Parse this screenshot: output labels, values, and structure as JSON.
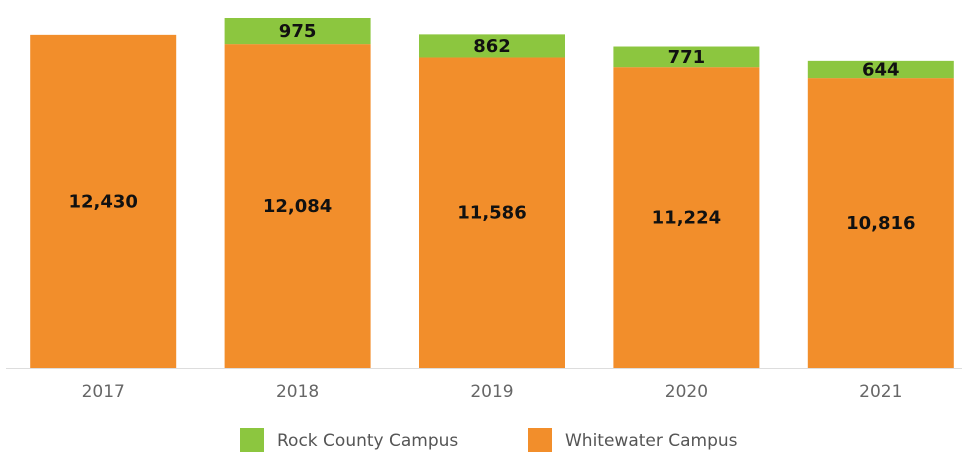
{
  "chart_data": {
    "type": "stacked_bar",
    "categories": [
      "2017",
      "2018",
      "2019",
      "2020",
      "2021"
    ],
    "series": [
      {
        "name": "Whitewater Campus",
        "color": "#f28e2b",
        "values": [
          12430,
          12084,
          11586,
          11224,
          10816
        ],
        "value_labels": [
          "12,430",
          "12,084",
          "11,586",
          "11,224",
          "10,816"
        ]
      },
      {
        "name": "Rock County Campus",
        "color": "#8cc63f",
        "values": [
          null,
          975,
          862,
          771,
          644
        ],
        "value_labels": [
          null,
          "975",
          "862",
          "771",
          "644"
        ]
      }
    ],
    "legend_order": [
      1,
      0
    ],
    "legend": "bottom"
  }
}
